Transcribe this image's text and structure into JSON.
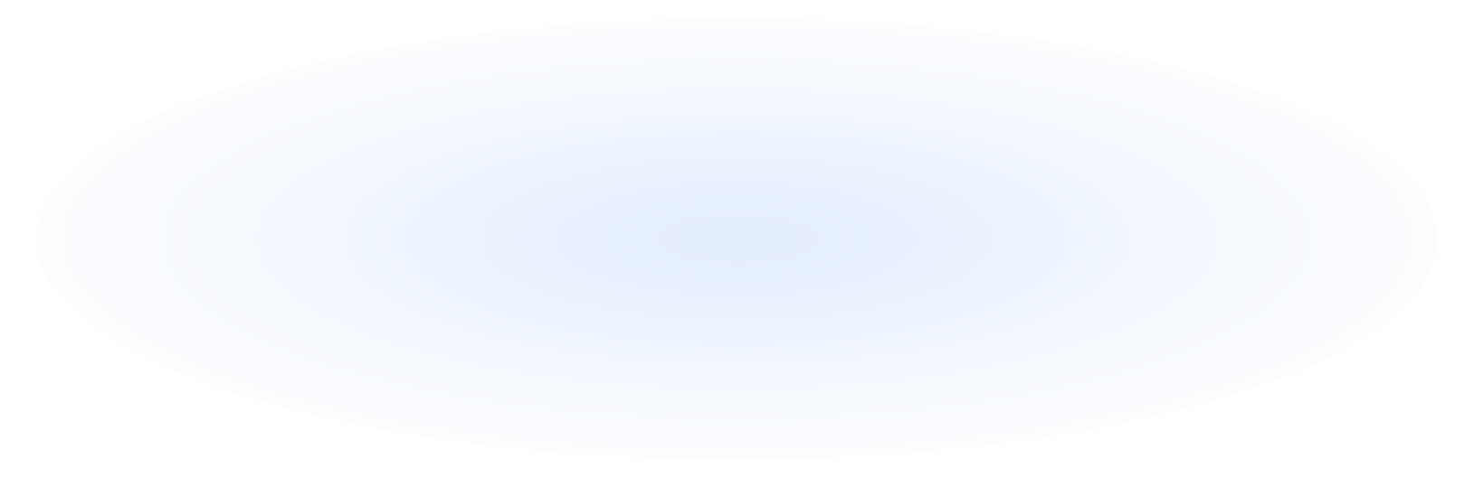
{
  "background": {
    "base_color": "#ffffff",
    "glow_color": "#e6effe"
  }
}
